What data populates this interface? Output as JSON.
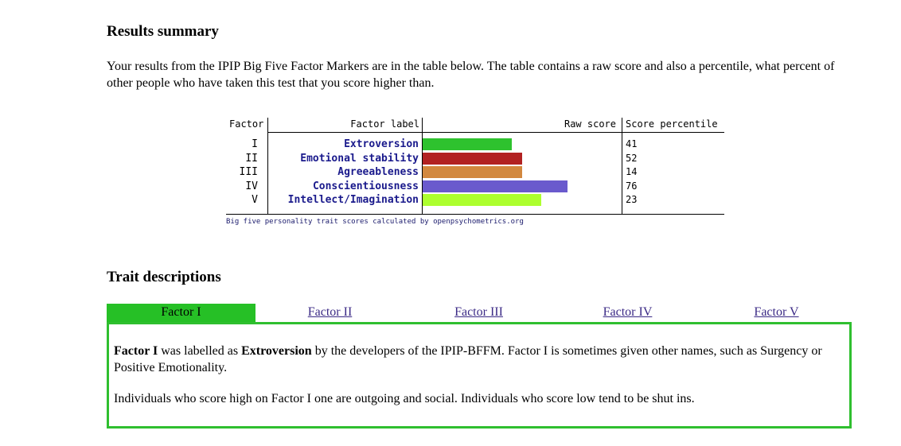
{
  "summary": {
    "heading": "Results summary",
    "intro": "Your results from the IPIP Big Five Factor Markers are in the table below. The table contains a raw score and also a percentile, what percent of other people who have taken this test that you score higher than."
  },
  "scores_table": {
    "headers": {
      "factor": "Factor",
      "label": "Factor label",
      "raw": "Raw score",
      "percentile": "Score percentile"
    },
    "rows": [
      {
        "numeral": "I",
        "label": "Extroversion",
        "raw_fraction": 0.45,
        "percentile": "41",
        "color": "#2ec22e"
      },
      {
        "numeral": "II",
        "label": "Emotional stability",
        "raw_fraction": 0.5,
        "percentile": "52",
        "color": "#b22222"
      },
      {
        "numeral": "III",
        "label": "Agreeableness",
        "raw_fraction": 0.5,
        "percentile": "14",
        "color": "#d2883e"
      },
      {
        "numeral": "IV",
        "label": "Conscientiousness",
        "raw_fraction": 0.73,
        "percentile": "76",
        "color": "#6a5acd"
      },
      {
        "numeral": "V",
        "label": "Intellect/Imagination",
        "raw_fraction": 0.6,
        "percentile": "23",
        "color": "#adff2f"
      }
    ],
    "credit": "Big five personality trait scores calculated by openpsychometrics.org"
  },
  "traits": {
    "heading": "Trait descriptions",
    "tabs": [
      "Factor I",
      "Factor II",
      "Factor III",
      "Factor IV",
      "Factor V"
    ],
    "active_tab": 0,
    "panel": {
      "p1_factor": "Factor I",
      "p1_mid": " was labelled as ",
      "p1_trait": "Extroversion",
      "p1_rest": " by the developers of the IPIP-BFFM. Factor I is sometimes given other names, such as Surgency or Positive Emotionality.",
      "p2": "Individuals who score high on Factor I one are outgoing and social. Individuals who score low tend to be shut ins."
    }
  },
  "colors": {
    "active_tab": "#26c026",
    "panel_border": "#2fbf2f",
    "tab_link": "#3b2a86"
  }
}
